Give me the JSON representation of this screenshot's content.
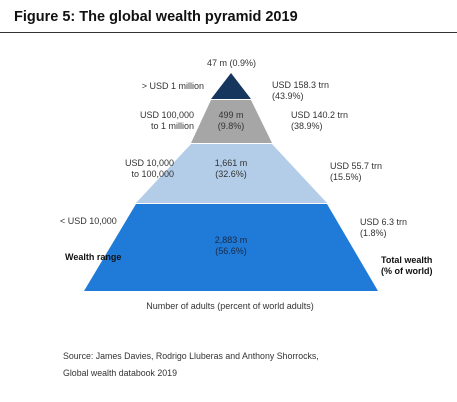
{
  "figure": {
    "title": "Figure 5: The global wealth pyramid 2019",
    "x_caption": "Number of adults (percent of world adults)",
    "left_axis_label": "Wealth range",
    "right_axis_label": [
      "Total wealth",
      "(% of world)"
    ],
    "source": [
      "Source: James Davies, Rodrigo Lluberas and Anthony Shorrocks,",
      "Global wealth databook 2019"
    ]
  },
  "colors": {
    "tier1": "#17365d",
    "tier2": "#a6a6a6",
    "tier3": "#b3cde9",
    "tier4": "#1f7ad8"
  },
  "chart_data": {
    "type": "pyramid",
    "title": "Figure 5: The global wealth pyramid 2019",
    "tiers": [
      {
        "wealth_range": [
          "> USD 1 million"
        ],
        "adults": [
          "47 m (0.9%)"
        ],
        "adults_millions": 47,
        "adults_pct": 0.9,
        "total_wealth": [
          "USD 158.3 trn",
          "(43.9%)"
        ],
        "wealth_trn": 158.3,
        "wealth_pct": 43.9
      },
      {
        "wealth_range": [
          "USD 100,000",
          "to 1 million"
        ],
        "adults": [
          "499 m",
          "(9.8%)"
        ],
        "adults_millions": 499,
        "adults_pct": 9.8,
        "total_wealth": [
          "USD 140.2 trn",
          "(38.9%)"
        ],
        "wealth_trn": 140.2,
        "wealth_pct": 38.9
      },
      {
        "wealth_range": [
          "USD 10,000",
          "to 100,000"
        ],
        "adults": [
          "1,661 m",
          "(32.6%)"
        ],
        "adults_millions": 1661,
        "adults_pct": 32.6,
        "total_wealth": [
          "USD 55.7 trn",
          "(15.5%)"
        ],
        "wealth_trn": 55.7,
        "wealth_pct": 15.5
      },
      {
        "wealth_range": [
          "< USD 10,000"
        ],
        "adults": [
          "2,883 m",
          "(56.6%)"
        ],
        "adults_millions": 2883,
        "adults_pct": 56.6,
        "total_wealth": [
          "USD 6.3 trn",
          "(1.8%)"
        ],
        "wealth_trn": 6.3,
        "wealth_pct": 1.8
      }
    ]
  }
}
